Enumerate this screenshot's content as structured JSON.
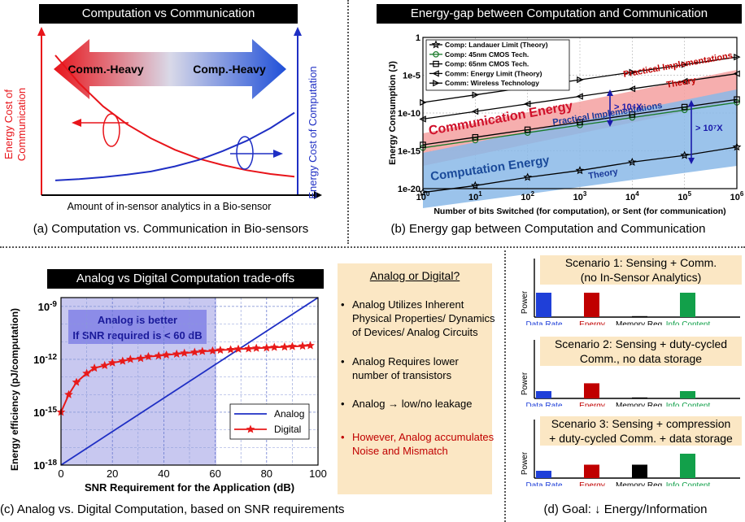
{
  "panel_a": {
    "title": "Computation vs Communication",
    "arrow_left": "Comm.-Heavy",
    "arrow_right": "Comp.-Heavy",
    "y_left_label": "Energy Cost of Communication",
    "y_right_label": "Energy Cost of Computation",
    "x_label": "Amount of in-sensor analytics in a Bio-sensor",
    "caption": "(a) Computation vs. Communication in Bio-sensors",
    "colors": {
      "comm": "#e8141a",
      "comp": "#1f2fc4"
    }
  },
  "panel_b": {
    "title": "Energy-gap between Computation and Communication",
    "caption": "(b) Energy gap between Computation and Communication",
    "region_comm": "Communication Energy",
    "region_comp": "Computation Energy",
    "ann_practical_top": "Practical Implementations",
    "ann_theory_top": "Theory",
    "ann_practical_bottom": "Practical Implementations",
    "ann_theory_bottom": "Theory",
    "gap_small": "> 10⁴X",
    "gap_large": "> 10⁷X"
  },
  "panel_c": {
    "title": "Analog vs Digital Computation trade-offs",
    "caption": "(c) Analog vs. Digital Computation, based on SNR requirements",
    "highlight_line1": "Analog is better",
    "highlight_line2": "If SNR required is < 60 dB",
    "box_title": "Analog or Digital?",
    "bullets": [
      "Analog Utilizes Inherent Physical Properties/ Dynamics of Devices/ Analog Circuits",
      "Analog Requires lower number of transistors",
      "Analog → low/no leakage",
      "However, Analog accumulates Noise and Mismatch"
    ],
    "bullet_colors": [
      "#000000",
      "#000000",
      "#000000",
      "#c00000"
    ]
  },
  "panel_d": {
    "caption": "(d) Goal: ↓ Energy/Information",
    "y_label": "Power",
    "bar_labels": [
      "Data Rate",
      "Energy",
      "Memory Req.",
      "Info Content"
    ],
    "bar_colors": [
      "#1f3fd8",
      "#c00000",
      "#000000",
      "#12a04a"
    ],
    "label_colors": [
      "#1f3fd8",
      "#c00000",
      "#000000",
      "#12a04a"
    ],
    "scenarios": [
      {
        "title_line1": "Scenario 1: Sensing + Comm.",
        "title_line2": "(no In-Sensor Analytics)",
        "levels": [
          1.0,
          1.0,
          0.03,
          1.0
        ]
      },
      {
        "title_line1": "Scenario 2: Sensing + duty-cycled",
        "title_line2": "Comm., no data storage",
        "levels": [
          0.3,
          0.62,
          0.03,
          0.3
        ]
      },
      {
        "title_line1": "Scenario 3: Sensing + compression",
        "title_line2": "+ duty-cycled Comm. + data storage",
        "levels": [
          0.3,
          0.55,
          0.55,
          1.0
        ]
      }
    ]
  },
  "chart_data": [
    {
      "type": "line",
      "title": "Computation vs Communication",
      "xlabel": "Amount of in-sensor analytics in a Bio-sensor",
      "ylabel": "Energy Cost of Communication",
      "y2label": "Energy Cost of Computation",
      "x": [
        0,
        1,
        2,
        3,
        4,
        5,
        6,
        7,
        8,
        9,
        10
      ],
      "series": [
        {
          "name": "Energy Cost of Communication",
          "values": [
            1.0,
            0.78,
            0.6,
            0.46,
            0.35,
            0.26,
            0.19,
            0.14,
            0.1,
            0.07,
            0.05
          ]
        },
        {
          "name": "Energy Cost of Computation",
          "values": [
            0.02,
            0.03,
            0.045,
            0.065,
            0.09,
            0.13,
            0.18,
            0.25,
            0.33,
            0.43,
            0.55
          ]
        }
      ]
    },
    {
      "type": "line",
      "xlabel": "Number of bits Switched (for computation), or Sent (for communication)",
      "ylabel": "Energy Consumption (J)",
      "xscale": "log",
      "yscale": "log",
      "xlim_exp": [
        0,
        6
      ],
      "ylim_exp": [
        -20,
        0
      ],
      "x_ticks": [
        "10^0",
        "10^1",
        "10^2",
        "10^3",
        "10^4",
        "10^5",
        "10^6"
      ],
      "y_ticks": [
        "1e-20",
        "1e-15",
        "1e-10",
        "1e-5",
        "1"
      ],
      "legend_position": "top-left",
      "series": [
        {
          "name": "Comp: Landauer Limit (Theory)",
          "marker": "star",
          "color": "#000000",
          "log10_y": [
            -20.5,
            -19.6,
            -18.5,
            -17.6,
            -16.5,
            -15.6,
            -14.5
          ]
        },
        {
          "name": "Comp: 45nm CMOS Tech.",
          "marker": "circle",
          "color": "#1a7a2a",
          "log10_y": [
            -14.6,
            -13.6,
            -12.6,
            -11.6,
            -10.6,
            -9.6,
            -8.6
          ]
        },
        {
          "name": "Comp: 65nm CMOS Tech.",
          "marker": "square",
          "color": "#000000",
          "log10_y": [
            -14.2,
            -13.2,
            -12.2,
            -11.2,
            -10.2,
            -9.2,
            -8.2
          ]
        },
        {
          "name": "Comm: Energy Limit (Theory)",
          "marker": "triangle-left",
          "color": "#000000",
          "log10_y": [
            -10.8,
            -9.8,
            -8.8,
            -7.8,
            -6.8,
            -5.8,
            -4.8
          ]
        },
        {
          "name": "Comm: Wireless Technology",
          "marker": "triangle-right",
          "color": "#000000",
          "log10_y": [
            -8.6,
            -7.6,
            -6.6,
            -5.6,
            -4.6,
            -3.6,
            -2.6
          ]
        }
      ]
    },
    {
      "type": "line",
      "title": "Analog vs Digital Computation trade-offs",
      "xlabel": "SNR Requirement for the Application (dB)",
      "ylabel": "Energy efficiency (pJ/computation)",
      "yscale": "log",
      "xlim": [
        0,
        100
      ],
      "ylim_exp": [
        -18,
        -8.5
      ],
      "x_ticks": [
        0,
        20,
        40,
        60,
        80,
        100
      ],
      "y_ticks_exp": [
        -18,
        -15,
        -12,
        -9
      ],
      "legend_position": "bottom-right",
      "series": [
        {
          "name": "Analog",
          "x": [
            0,
            100
          ],
          "log10_y": [
            -18,
            -8.4
          ]
        },
        {
          "name": "Digital",
          "x": [
            0,
            3,
            6,
            10,
            13,
            17,
            20,
            24,
            27,
            31,
            34,
            38,
            41,
            45,
            48,
            52,
            55,
            59,
            62,
            66,
            69,
            73,
            76,
            80,
            83,
            87,
            90,
            94,
            97
          ],
          "log10_y": [
            -15.0,
            -14.0,
            -13.3,
            -12.8,
            -12.5,
            -12.35,
            -12.2,
            -12.1,
            -12.0,
            -11.95,
            -11.85,
            -11.8,
            -11.75,
            -11.7,
            -11.65,
            -11.6,
            -11.55,
            -11.52,
            -11.48,
            -11.45,
            -11.42,
            -11.4,
            -11.37,
            -11.35,
            -11.32,
            -11.3,
            -11.27,
            -11.25,
            -11.22
          ]
        }
      ]
    },
    {
      "type": "bar",
      "categories": [
        "Data Rate",
        "Energy",
        "Memory Req.",
        "Info Content"
      ],
      "ylabel": "Power",
      "series": [
        {
          "name": "Scenario 1: Sensing + Comm. (no In-Sensor Analytics)",
          "values": [
            1.0,
            1.0,
            0.03,
            1.0
          ]
        },
        {
          "name": "Scenario 2: Sensing + duty-cycled Comm., no data storage",
          "values": [
            0.3,
            0.62,
            0.03,
            0.3
          ]
        },
        {
          "name": "Scenario 3: Sensing + compression + duty-cycled Comm. + data storage",
          "values": [
            0.3,
            0.55,
            0.55,
            1.0
          ]
        }
      ]
    }
  ]
}
